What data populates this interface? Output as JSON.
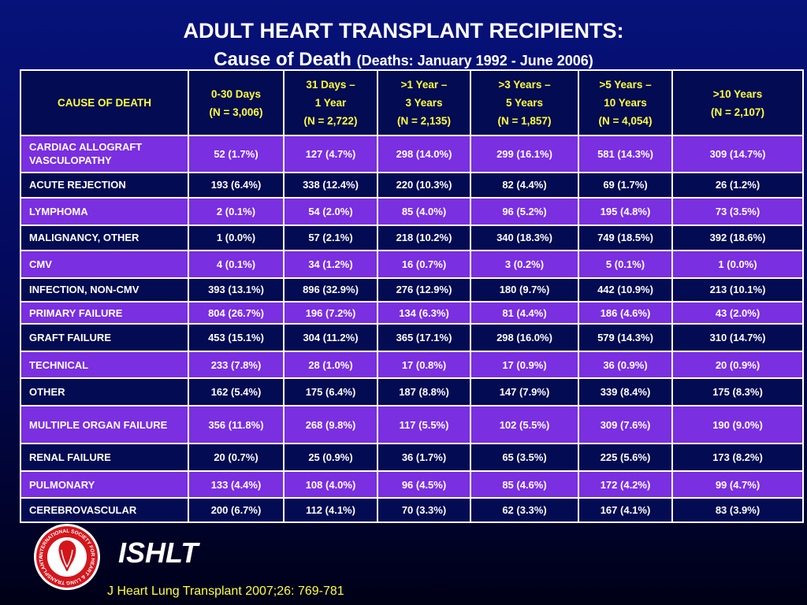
{
  "title": {
    "line1": "ADULT HEART TRANSPLANT RECIPIENTS:",
    "line2_main": "Cause of Death",
    "line2_sub": "(Deaths: January 1992 - June 2006)"
  },
  "table": {
    "columns": [
      [
        "CAUSE OF DEATH"
      ],
      [
        "0-30 Days",
        "(N = 3,006)"
      ],
      [
        "31 Days –",
        "1 Year",
        "(N = 2,722)"
      ],
      [
        ">1 Year –",
        "3 Years",
        "(N = 2,135)"
      ],
      [
        ">3 Years –",
        "5 Years",
        "(N = 1,857)"
      ],
      [
        ">5 Years –",
        "10 Years",
        "(N = 4,054)"
      ],
      [
        ">10 Years",
        "(N = 2,107)"
      ]
    ],
    "rows": [
      {
        "cause": "CARDIAC ALLOGRAFT VASCULOPATHY",
        "values": [
          "52 (1.7%)",
          "127 (4.7%)",
          "298 (14.0%)",
          "299 (16.1%)",
          "581 (14.3%)",
          "309 (14.7%)"
        ]
      },
      {
        "cause": "ACUTE REJECTION",
        "values": [
          "193 (6.4%)",
          "338 (12.4%)",
          "220 (10.3%)",
          "82 (4.4%)",
          "69 (1.7%)",
          "26 (1.2%)"
        ]
      },
      {
        "cause": "LYMPHOMA",
        "values": [
          "2 (0.1%)",
          "54 (2.0%)",
          "85 (4.0%)",
          "96 (5.2%)",
          "195 (4.8%)",
          "73 (3.5%)"
        ]
      },
      {
        "cause": "MALIGNANCY, OTHER",
        "values": [
          "1 (0.0%)",
          "57 (2.1%)",
          "218 (10.2%)",
          "340 (18.3%)",
          "749 (18.5%)",
          "392 (18.6%)"
        ]
      },
      {
        "cause": "CMV",
        "values": [
          "4 (0.1%)",
          "34 (1.2%)",
          "16 (0.7%)",
          "3 (0.2%)",
          "5 (0.1%)",
          "1 (0.0%)"
        ]
      },
      {
        "cause": "INFECTION, NON-CMV",
        "values": [
          "393 (13.1%)",
          "896 (32.9%)",
          "276 (12.9%)",
          "180 (9.7%)",
          "442 (10.9%)",
          "213 (10.1%)"
        ]
      },
      {
        "cause": "PRIMARY FAILURE",
        "values": [
          "804 (26.7%)",
          "196 (7.2%)",
          "134 (6.3%)",
          "81 (4.4%)",
          "186 (4.6%)",
          "43 (2.0%)"
        ]
      },
      {
        "cause": "GRAFT FAILURE",
        "values": [
          "453 (15.1%)",
          "304 (11.2%)",
          "365 (17.1%)",
          "298 (16.0%)",
          "579 (14.3%)",
          "310 (14.7%)"
        ]
      },
      {
        "cause": "TECHNICAL",
        "values": [
          "233 (7.8%)",
          "28 (1.0%)",
          "17 (0.8%)",
          "17 (0.9%)",
          "36 (0.9%)",
          "20 (0.9%)"
        ]
      },
      {
        "cause": "OTHER",
        "values": [
          "162 (5.4%)",
          "175 (6.4%)",
          "187 (8.8%)",
          "147 (7.9%)",
          "339 (8.4%)",
          "175 (8.3%)"
        ]
      },
      {
        "cause": "MULTIPLE ORGAN FAILURE",
        "values": [
          "356 (11.8%)",
          "268 (9.8%)",
          "117 (5.5%)",
          "102 (5.5%)",
          "309 (7.6%)",
          "190 (9.0%)"
        ]
      },
      {
        "cause": "RENAL FAILURE",
        "values": [
          "20 (0.7%)",
          "25 (0.9%)",
          "36 (1.7%)",
          "65 (3.5%)",
          "225 (5.6%)",
          "173 (8.2%)"
        ]
      },
      {
        "cause": "PULMONARY",
        "values": [
          "133 (4.4%)",
          "108 (4.0%)",
          "96 (4.5%)",
          "85 (4.6%)",
          "172 (4.2%)",
          "99 (4.7%)"
        ]
      },
      {
        "cause": "CEREBROVASCULAR",
        "values": [
          "200 (6.7%)",
          "112 (4.1%)",
          "70 (3.3%)",
          "62 (3.3%)",
          "167 (4.1%)",
          "83 (3.9%)"
        ]
      }
    ]
  },
  "logo": {
    "text": "INTERNATIONAL SOCIETY FOR HEART & LUNG TRANSPLANTATION",
    "icon": "ishlt-seal-icon"
  },
  "brand": "ISHLT",
  "citation": "J Heart Lung Transplant 2007;26: 769-781",
  "colors": {
    "background_top": "#07127a",
    "background_bottom": "#000016",
    "header_text": "#ffff3c",
    "row_purple": "#7a2fe0",
    "row_navy": "#030b52",
    "logo_red": "#d4161c"
  }
}
